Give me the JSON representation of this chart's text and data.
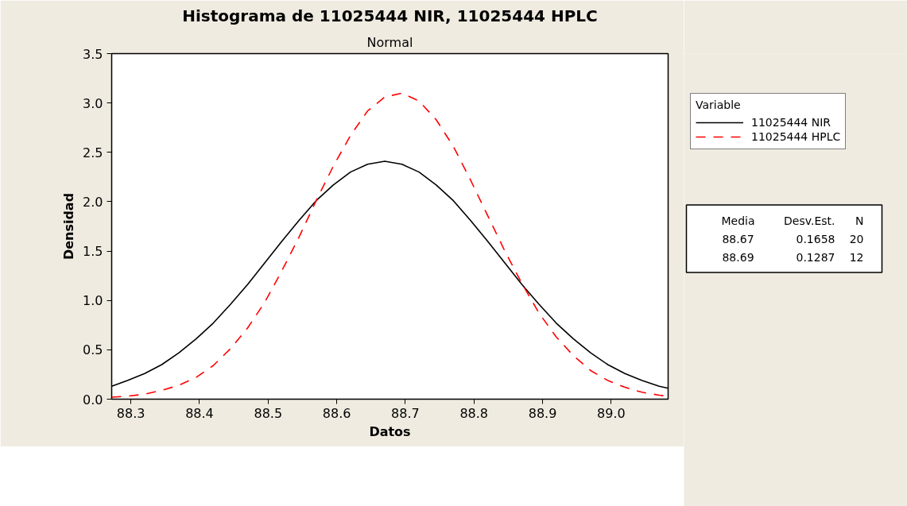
{
  "chart_data": {
    "type": "line",
    "title": "Histograma de 11025444 NIR, 11025444 HPLC",
    "subtitle": "Normal",
    "xlabel": "Datos",
    "ylabel": "Densidad",
    "legend_title": "Variable",
    "legend": "top right",
    "grid": false,
    "marker": "none",
    "x": [
      88.272,
      88.295,
      88.32,
      88.345,
      88.37,
      88.395,
      88.42,
      88.445,
      88.47,
      88.495,
      88.52,
      88.545,
      88.57,
      88.595,
      88.62,
      88.645,
      88.67,
      88.695,
      88.72,
      88.745,
      88.77,
      88.795,
      88.82,
      88.845,
      88.87,
      88.895,
      88.92,
      88.945,
      88.97,
      88.995,
      89.02,
      89.045,
      89.07,
      89.083
    ],
    "series": [
      {
        "name": "11025444 NIR",
        "color": "#000000",
        "line_style": "solid",
        "values": [
          0.13,
          0.19,
          0.26,
          0.35,
          0.47,
          0.61,
          0.77,
          0.96,
          1.16,
          1.38,
          1.6,
          1.81,
          2.01,
          2.17,
          2.3,
          2.38,
          2.41,
          2.38,
          2.3,
          2.17,
          2.01,
          1.81,
          1.6,
          1.38,
          1.16,
          0.96,
          0.77,
          0.61,
          0.47,
          0.35,
          0.26,
          0.19,
          0.13,
          0.11
        ]
      },
      {
        "name": "11025444 HPLC",
        "color": "#ff0000",
        "line_style": "dashed",
        "values": [
          0.02,
          0.03,
          0.05,
          0.09,
          0.14,
          0.22,
          0.34,
          0.51,
          0.72,
          0.98,
          1.3,
          1.64,
          2.01,
          2.36,
          2.67,
          2.92,
          3.06,
          3.1,
          3.02,
          2.83,
          2.56,
          2.22,
          1.86,
          1.5,
          1.17,
          0.87,
          0.63,
          0.44,
          0.29,
          0.19,
          0.12,
          0.07,
          0.04,
          0.03
        ]
      }
    ],
    "xlim": [
      88.272,
      89.083
    ],
    "ylim": [
      0,
      3.5
    ],
    "xticks": [
      88.3,
      88.4,
      88.5,
      88.6,
      88.7,
      88.8,
      88.9,
      {
        "value": 89.0,
        "label": "89.0"
      }
    ],
    "yticks": [
      {
        "value": 0,
        "label": "0.0"
      },
      {
        "value": 0.5,
        "label": "0.5"
      },
      {
        "value": 1.0,
        "label": "1.0"
      },
      {
        "value": 1.5,
        "label": "1.5"
      },
      {
        "value": 2.0,
        "label": "2.0"
      },
      {
        "value": 2.5,
        "label": "2.5"
      },
      {
        "value": 3.0,
        "label": "3.0"
      },
      {
        "value": 3.5,
        "label": "3.5"
      }
    ],
    "annotations": [
      "Media",
      "Desv.Est.",
      "N",
      "88.67",
      "0.1658",
      "20",
      "88.69",
      "0.1287",
      "12"
    ]
  }
}
